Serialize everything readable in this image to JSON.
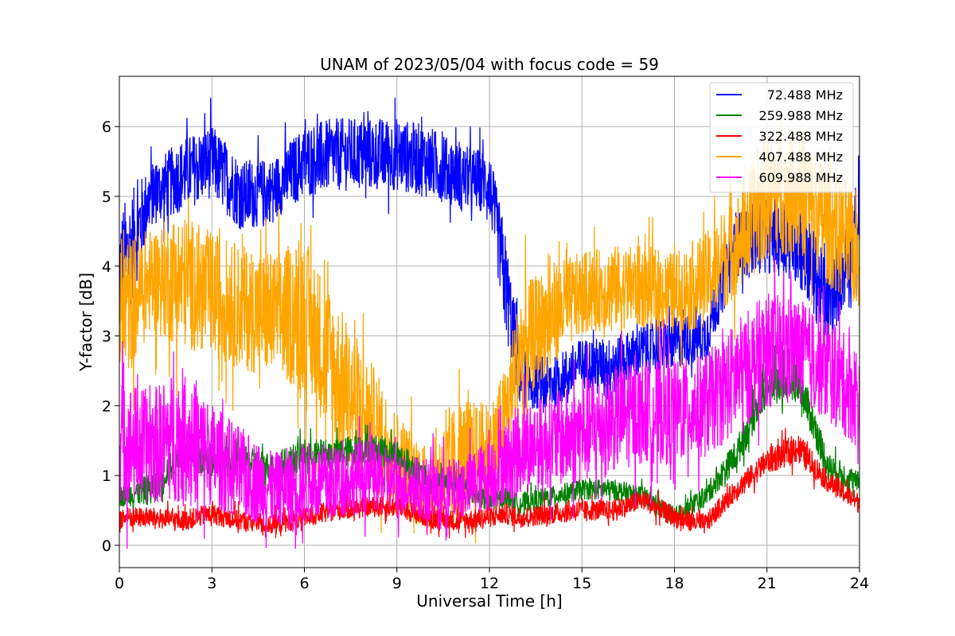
{
  "chart_data": {
    "type": "line",
    "title": "UNAM of 2023/05/04 with focus code = 59",
    "xlabel": "Universal Time [h]",
    "ylabel": "Y-factor [dB]",
    "xlim": [
      0,
      24
    ],
    "ylim": [
      -0.32,
      6.72
    ],
    "xticks": [
      0,
      3,
      6,
      9,
      12,
      15,
      18,
      21,
      24
    ],
    "xtick_labels": [
      "0",
      "3",
      "6",
      "9",
      "12",
      "15",
      "18",
      "21",
      "24"
    ],
    "yticks": [
      0,
      1,
      2,
      3,
      4,
      5,
      6
    ],
    "ytick_labels": [
      "0",
      "1",
      "2",
      "3",
      "4",
      "5",
      "6"
    ],
    "grid": true,
    "legend_position": "top-right",
    "x": [
      0,
      1,
      2,
      3,
      4,
      5,
      6,
      7,
      8,
      9,
      10,
      11,
      12,
      12.5,
      13,
      14,
      15,
      16,
      17,
      18,
      19,
      20,
      21,
      22,
      23,
      24
    ],
    "series": [
      {
        "name": " 72.488 MHz",
        "color": "#0000ff",
        "values": [
          3.8,
          5.0,
          5.3,
          5.5,
          5.0,
          5.1,
          5.5,
          5.6,
          5.6,
          5.6,
          5.5,
          5.3,
          5.2,
          3.8,
          2.4,
          2.3,
          2.6,
          2.6,
          2.8,
          2.9,
          3.0,
          4.3,
          4.5,
          4.4,
          3.4,
          4.6
        ],
        "amplitude": [
          1.4,
          0.6,
          0.7,
          0.7,
          0.7,
          0.6,
          0.7,
          0.7,
          0.7,
          0.7,
          0.7,
          0.6,
          0.6,
          1.0,
          0.6,
          0.5,
          0.5,
          0.5,
          0.5,
          0.5,
          0.5,
          0.6,
          0.8,
          0.9,
          0.8,
          0.8
        ]
      },
      {
        "name": "259.988 MHz",
        "color": "#008000",
        "values": [
          0.7,
          0.8,
          1.3,
          1.2,
          1.2,
          1.1,
          1.3,
          1.3,
          1.4,
          1.3,
          0.9,
          0.9,
          0.6,
          0.7,
          0.6,
          0.7,
          0.8,
          0.8,
          0.7,
          0.4,
          0.7,
          1.3,
          2.3,
          2.4,
          1.1,
          0.9
        ],
        "amplitude": [
          0.2,
          0.3,
          0.3,
          0.3,
          0.3,
          0.3,
          0.3,
          0.3,
          0.3,
          0.3,
          0.3,
          0.2,
          0.2,
          0.2,
          0.2,
          0.2,
          0.2,
          0.2,
          0.2,
          0.2,
          0.2,
          0.3,
          0.4,
          0.4,
          0.3,
          0.2
        ]
      },
      {
        "name": "322.488 MHz",
        "color": "#ff0000",
        "values": [
          0.4,
          0.4,
          0.35,
          0.45,
          0.35,
          0.3,
          0.4,
          0.5,
          0.55,
          0.55,
          0.4,
          0.35,
          0.4,
          0.45,
          0.4,
          0.45,
          0.5,
          0.5,
          0.65,
          0.4,
          0.3,
          0.8,
          1.2,
          1.4,
          0.9,
          0.6
        ],
        "amplitude": [
          0.2,
          0.2,
          0.2,
          0.2,
          0.2,
          0.2,
          0.2,
          0.2,
          0.2,
          0.2,
          0.2,
          0.2,
          0.2,
          0.2,
          0.2,
          0.2,
          0.2,
          0.2,
          0.2,
          0.2,
          0.2,
          0.2,
          0.25,
          0.3,
          0.2,
          0.2
        ]
      },
      {
        "name": "407.488 MHz",
        "color": "#ffa500",
        "values": [
          3.3,
          3.8,
          3.8,
          3.6,
          3.4,
          3.3,
          3.3,
          2.5,
          1.8,
          1.2,
          0.8,
          1.2,
          1.3,
          1.8,
          2.8,
          3.3,
          3.6,
          3.7,
          3.7,
          3.6,
          3.8,
          4.3,
          5.0,
          5.1,
          4.6,
          4.2
        ],
        "amplitude": [
          1.5,
          1.0,
          1.3,
          1.2,
          1.2,
          1.2,
          1.5,
          1.4,
          1.3,
          1.0,
          0.8,
          1.2,
          1.0,
          1.0,
          1.2,
          1.0,
          0.8,
          0.8,
          0.8,
          0.8,
          0.9,
          1.0,
          1.2,
          1.2,
          1.2,
          1.2
        ]
      },
      {
        "name": "609.988 MHz",
        "color": "#ff00ff",
        "values": [
          1.5,
          1.4,
          1.6,
          1.3,
          1.0,
          0.8,
          0.9,
          0.9,
          1.0,
          0.9,
          0.8,
          0.8,
          1.0,
          1.2,
          1.4,
          1.5,
          1.6,
          1.8,
          1.9,
          1.9,
          2.0,
          2.4,
          2.8,
          2.8,
          2.5,
          2.1
        ],
        "amplitude": [
          1.2,
          1.1,
          1.3,
          1.0,
          0.9,
          0.7,
          0.8,
          0.7,
          0.7,
          0.6,
          0.6,
          0.6,
          0.7,
          0.8,
          0.9,
          0.9,
          1.0,
          1.0,
          1.0,
          1.0,
          1.0,
          1.1,
          1.1,
          1.0,
          1.0,
          1.0
        ]
      }
    ]
  }
}
